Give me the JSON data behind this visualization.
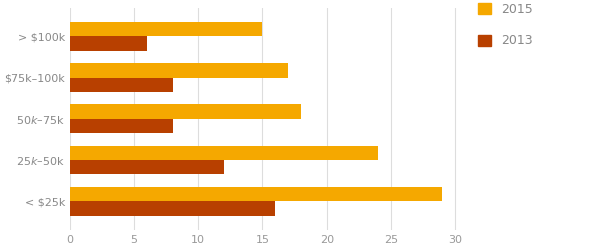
{
  "categories": [
    "> $100k",
    "$75k–100k",
    "$50k–$75k",
    "$25k–$50k",
    "< $25k"
  ],
  "values_2015": [
    15,
    17,
    18,
    24,
    29
  ],
  "values_2013": [
    6,
    8,
    8,
    12,
    16
  ],
  "color_2015": "#F5A800",
  "color_2013": "#B84000",
  "xlim": [
    0,
    31
  ],
  "xticks": [
    0,
    5,
    10,
    15,
    20,
    25,
    30
  ],
  "legend_2015": "2015",
  "legend_2013": "2013",
  "bar_height": 0.35,
  "background_color": "#ffffff",
  "tick_color": "#999999",
  "grid_color": "#dddddd"
}
